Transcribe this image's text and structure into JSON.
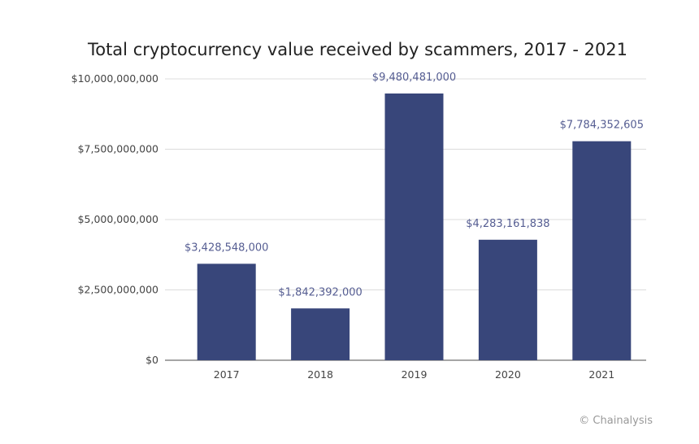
{
  "chart_data": {
    "type": "bar",
    "title": "Total cryptocurrency value received by scammers, 2017 - 2021",
    "xlabel": "",
    "ylabel": "",
    "categories": [
      "2017",
      "2018",
      "2019",
      "2020",
      "2021"
    ],
    "values": [
      3428548000,
      1842392000,
      9480481000,
      4283161838,
      7784352605
    ],
    "data_labels": [
      "$3,428,548,000",
      "$1,842,392,000",
      "$9,480,481,000",
      "$4,283,161,838",
      "$7,784,352,605"
    ],
    "ylim": [
      0,
      10000000000
    ],
    "yticks": [
      0,
      2500000000,
      5000000000,
      7500000000,
      10000000000
    ],
    "ytick_labels": [
      "$0",
      "$2,500,000,000",
      "$5,000,000,000",
      "$7,500,000,000",
      "$10,000,000,000"
    ],
    "grid": true,
    "legend": "none",
    "colors": {
      "bar": "#38467a",
      "data_label": "#555d92",
      "grid": "#dcdcdc",
      "axis": "#888888"
    }
  },
  "credit": "© Chainalysis"
}
